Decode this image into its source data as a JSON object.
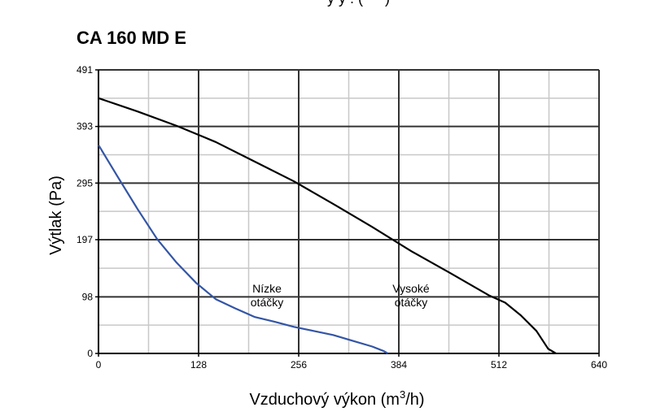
{
  "page": {
    "clipped_heading": "- - y y . ( - - )"
  },
  "chart_data": {
    "type": "line",
    "title": "CA 160 MD E",
    "xlabel": "Vzduchový výkon (m",
    "xlabel_sup": "3",
    "xlabel_end": "/h)",
    "ylabel": "Výtlak (Pa)",
    "xlim": [
      0,
      640
    ],
    "ylim": [
      0,
      491
    ],
    "x_ticks": [
      0,
      128,
      256,
      384,
      512,
      640
    ],
    "y_ticks": [
      0,
      98,
      197,
      295,
      393,
      491
    ],
    "grid": true,
    "series": [
      {
        "name": "Vysoké otáčky",
        "label_lines": [
          "Vysoké",
          "otáčky"
        ],
        "color": "#000000",
        "points": [
          [
            0,
            442
          ],
          [
            50,
            419
          ],
          [
            100,
            394
          ],
          [
            150,
            366
          ],
          [
            200,
            332
          ],
          [
            250,
            298
          ],
          [
            300,
            259
          ],
          [
            350,
            219
          ],
          [
            400,
            177
          ],
          [
            450,
            139
          ],
          [
            500,
            100
          ],
          [
            520,
            88
          ],
          [
            540,
            66
          ],
          [
            560,
            39
          ],
          [
            575,
            8
          ],
          [
            585,
            0
          ]
        ]
      },
      {
        "name": "Nízke otáčky",
        "label_lines": [
          "Nízke",
          "otáčky"
        ],
        "color": "#3355a5",
        "points": [
          [
            0,
            361
          ],
          [
            25,
            305
          ],
          [
            50,
            250
          ],
          [
            75,
            198
          ],
          [
            100,
            157
          ],
          [
            125,
            122
          ],
          [
            150,
            94
          ],
          [
            175,
            78
          ],
          [
            200,
            63
          ],
          [
            225,
            55
          ],
          [
            250,
            46
          ],
          [
            275,
            39
          ],
          [
            300,
            32
          ],
          [
            325,
            22
          ],
          [
            350,
            12
          ],
          [
            365,
            4
          ],
          [
            370,
            0
          ]
        ]
      }
    ]
  }
}
